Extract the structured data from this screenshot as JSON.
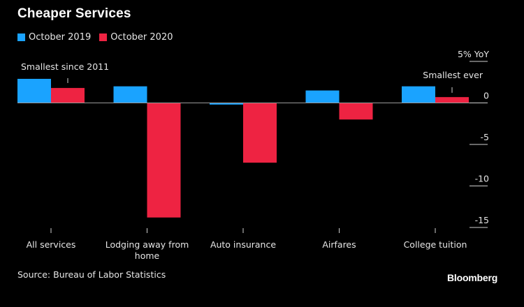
{
  "title": "Cheaper Services",
  "source": "Source: Bureau of Labor Statistics",
  "brand": "Bloomberg",
  "colors": {
    "october_2019": "#1aa3ff",
    "october_2020": "#ee2342"
  },
  "chart_data": {
    "type": "bar",
    "categories": [
      [
        "All services"
      ],
      [
        "Lodging away from",
        "home"
      ],
      [
        "Auto insurance"
      ],
      [
        "Airfares"
      ],
      [
        "College tuition"
      ]
    ],
    "series": [
      {
        "name": "October 2019",
        "values": [
          2.9,
          2.0,
          -0.2,
          1.5,
          2.0
        ]
      },
      {
        "name": "October 2020",
        "values": [
          1.8,
          -13.8,
          -7.2,
          -2.0,
          0.7
        ]
      }
    ],
    "ylim": [
      -15,
      5
    ],
    "yticks": [
      5,
      0,
      -5,
      -10,
      -15
    ],
    "ytick_labels": [
      "5% YoY",
      "0",
      "-5",
      "-10",
      "-15"
    ],
    "y_axis_side": "right",
    "legend_position": "top-left",
    "grid": false,
    "annotations": [
      {
        "text": "Smallest since 2011",
        "category_index": 0
      },
      {
        "text": "Smallest ever",
        "category_index": 4
      }
    ]
  }
}
